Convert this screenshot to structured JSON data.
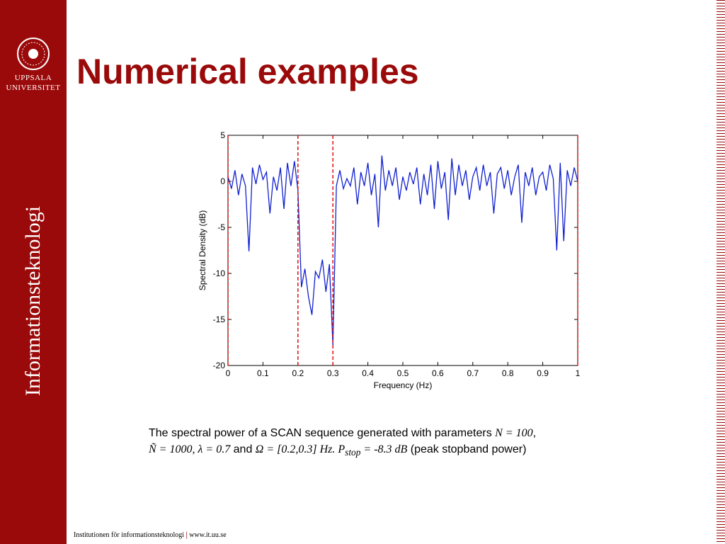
{
  "slide": {
    "logo_line1": "UPPSALA",
    "logo_line2": "UNIVERSITET",
    "sidebar": "Informationsteknologi",
    "title": "Numerical examples",
    "caption": [
      "The spectral power of a SCAN sequence generated with parameters ",
      "N = 100",
      ",",
      "Ñ = 1000, λ = 0.7",
      " and ",
      "Ω = [0.2,0.3] Hz. P",
      "stop",
      " = -8.3 dB",
      " (peak stopband power)"
    ],
    "footer_left": "Institutionen för informationsteknologi",
    "footer_right": "www.it.uu.se"
  },
  "chart_data": {
    "type": "line",
    "xlabel": "Frequency (Hz)",
    "ylabel": "Spectral Density (dB)",
    "xlim": [
      0,
      1
    ],
    "ylim": [
      -20,
      5
    ],
    "xticks": [
      0,
      0.1,
      0.2,
      0.3,
      0.4,
      0.5,
      0.6,
      0.7,
      0.8,
      0.9,
      1
    ],
    "yticks": [
      -20,
      -15,
      -10,
      -5,
      0,
      5
    ],
    "vlines": [
      0,
      0.2,
      0.3,
      1
    ],
    "vline_color": "#e01010",
    "series": [
      {
        "color": "#1020d0",
        "x": [
          0,
          0.01,
          0.02,
          0.03,
          0.04,
          0.05,
          0.06,
          0.07,
          0.08,
          0.09,
          0.1,
          0.11,
          0.12,
          0.13,
          0.14,
          0.15,
          0.16,
          0.17,
          0.18,
          0.19,
          0.2,
          0.21,
          0.22,
          0.23,
          0.24,
          0.25,
          0.26,
          0.27,
          0.28,
          0.29,
          0.3,
          0.31,
          0.32,
          0.33,
          0.34,
          0.35,
          0.36,
          0.37,
          0.38,
          0.39,
          0.4,
          0.41,
          0.42,
          0.43,
          0.44,
          0.45,
          0.46,
          0.47,
          0.48,
          0.49,
          0.5,
          0.51,
          0.52,
          0.53,
          0.54,
          0.55,
          0.56,
          0.57,
          0.58,
          0.59,
          0.6,
          0.61,
          0.62,
          0.63,
          0.64,
          0.65,
          0.66,
          0.67,
          0.68,
          0.69,
          0.7,
          0.71,
          0.72,
          0.73,
          0.74,
          0.75,
          0.76,
          0.77,
          0.78,
          0.79,
          0.8,
          0.81,
          0.82,
          0.83,
          0.84,
          0.85,
          0.86,
          0.87,
          0.88,
          0.89,
          0.9,
          0.91,
          0.92,
          0.93,
          0.94,
          0.95,
          0.96,
          0.97,
          0.98,
          0.99,
          1
        ],
        "values": [
          0.5,
          -0.8,
          1.2,
          -1.5,
          0.8,
          -0.5,
          -7.6,
          1.5,
          -0.3,
          1.8,
          0.2,
          1.0,
          -3.5,
          0.5,
          -1.0,
          1.5,
          -3.0,
          2.0,
          -0.5,
          2.2,
          -1.0,
          -11.5,
          -9.5,
          -12.5,
          -14.5,
          -9.8,
          -10.5,
          -8.5,
          -12.0,
          -9.0,
          -17.8,
          -0.5,
          1.2,
          -0.8,
          0.3,
          -0.5,
          1.5,
          -2.5,
          1.0,
          -0.5,
          2.0,
          -1.5,
          0.8,
          -5.0,
          2.8,
          -1.0,
          1.2,
          -0.5,
          1.5,
          -2.0,
          0.5,
          -1.0,
          1.0,
          -0.3,
          1.5,
          -2.5,
          0.8,
          -1.5,
          1.8,
          -3.0,
          2.2,
          -0.8,
          1.0,
          -4.2,
          2.5,
          -1.5,
          1.8,
          -0.5,
          1.2,
          -2.0,
          0.5,
          1.5,
          -1.0,
          1.8,
          -0.5,
          1.0,
          -3.5,
          0.8,
          1.5,
          -0.8,
          1.2,
          -1.5,
          0.5,
          1.8,
          -4.5,
          1.0,
          -0.5,
          1.5,
          -1.5,
          0.5,
          1.0,
          -1.0,
          1.8,
          0.3,
          -7.5,
          2.0,
          -6.5,
          1.2,
          -0.5,
          1.5,
          0.0
        ]
      }
    ]
  }
}
